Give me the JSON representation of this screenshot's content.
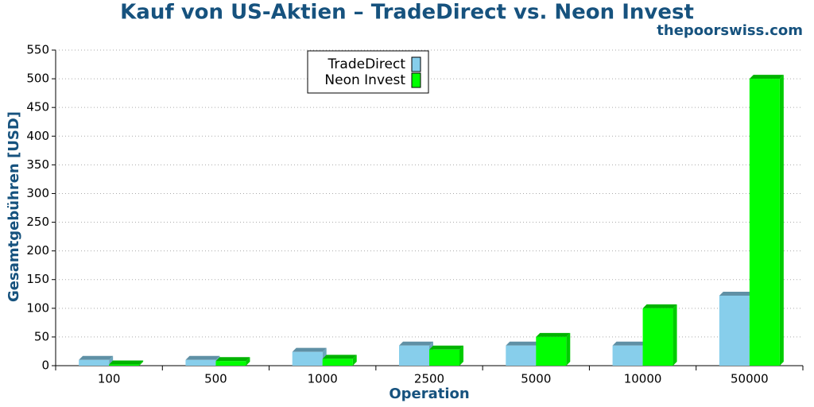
{
  "chart_data": {
    "type": "bar",
    "title": "Kauf von US-Aktien – TradeDirect vs. Neon Invest",
    "subtitle": "thepoorswiss.com",
    "x_label": "Operation",
    "y_label": "Gesamtgebühren [USD]",
    "categories": [
      "100",
      "500",
      "1000",
      "2500",
      "5000",
      "10000",
      "50000"
    ],
    "series": [
      {
        "name": "TradeDirect",
        "color": "#87ceeb",
        "values": [
          10,
          10,
          24,
          35,
          35,
          35,
          122
        ]
      },
      {
        "name": "Neon Invest",
        "color": "#00ff00",
        "values": [
          2,
          8,
          12,
          28,
          50,
          100,
          500
        ]
      }
    ],
    "ylim": [
      0,
      550
    ],
    "yticks": [
      0,
      50,
      100,
      150,
      200,
      250,
      300,
      350,
      400,
      450,
      500,
      550
    ],
    "grid": true,
    "legend": "top"
  }
}
